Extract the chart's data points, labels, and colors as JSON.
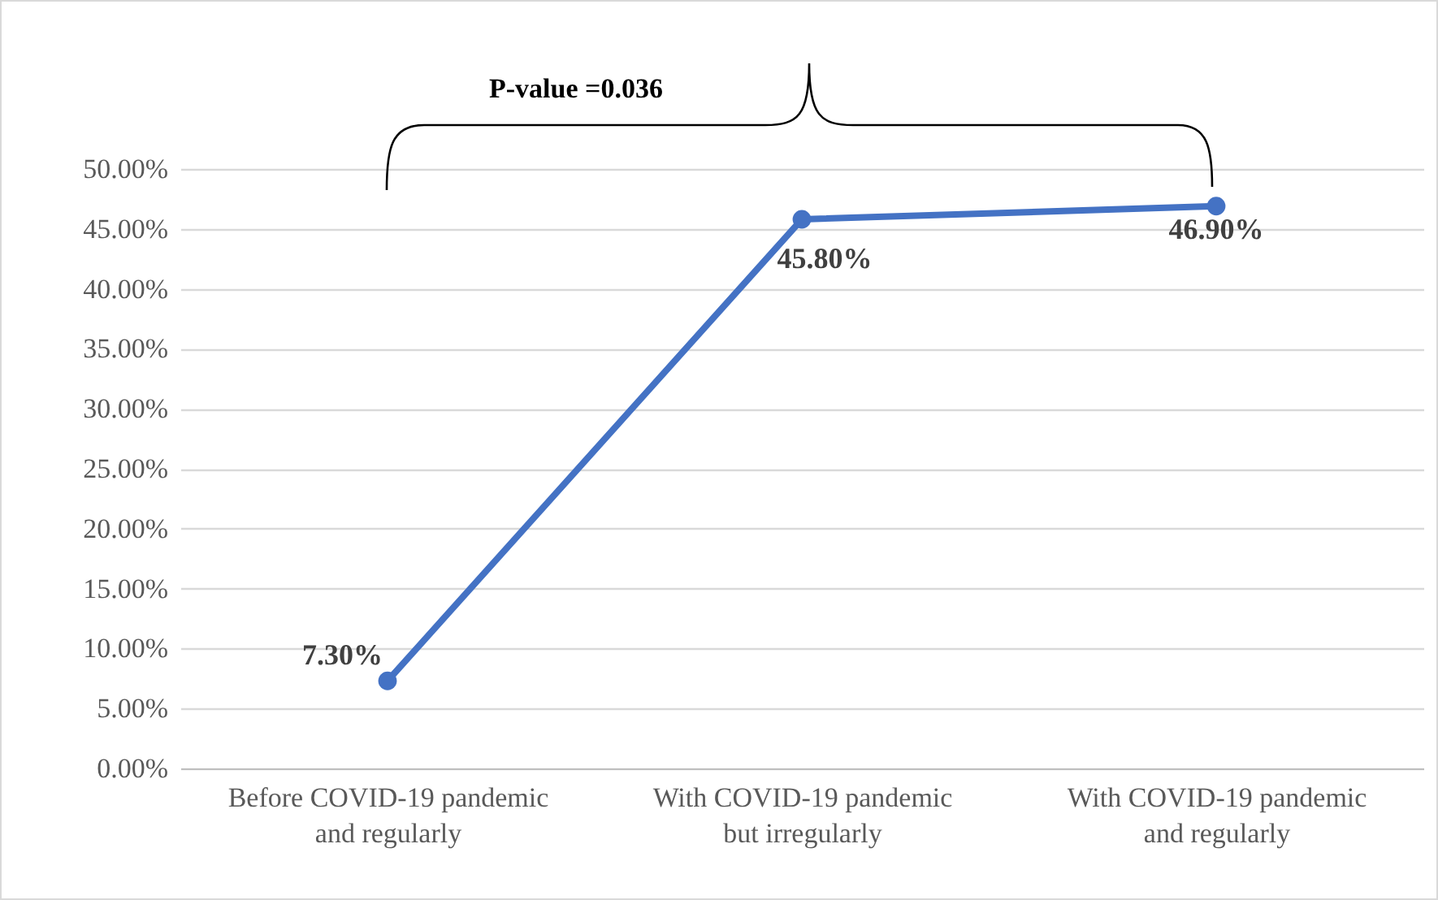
{
  "chart_data": {
    "type": "line",
    "categories": [
      "Before COVID-19 pandemic\nand regularly",
      "With COVID-19 pandemic\nbut irregularly",
      "With COVID-19 pandemic\nand regularly"
    ],
    "series": [
      {
        "color": "#4472c4",
        "values": [
          7.3,
          45.8,
          46.9
        ],
        "value_labels": [
          "7.30%",
          "45.80%",
          "46.90%"
        ]
      }
    ],
    "ylim": [
      0,
      50
    ],
    "yticks": [
      {
        "value": 0,
        "label": "0.00%"
      },
      {
        "value": 5,
        "label": "5.00%"
      },
      {
        "value": 10,
        "label": "10.00%"
      },
      {
        "value": 15,
        "label": "15.00%"
      },
      {
        "value": 20,
        "label": "20.00%"
      },
      {
        "value": 25,
        "label": "25.00%"
      },
      {
        "value": 30,
        "label": "30.00%"
      },
      {
        "value": 35,
        "label": "35.00%"
      },
      {
        "value": 40,
        "label": "40.00%"
      },
      {
        "value": 45,
        "label": "45.00%"
      },
      {
        "value": 50,
        "label": "50.00%"
      }
    ],
    "grid": "y",
    "marker": "circle",
    "line_style": "solid",
    "annotations": [
      "P-value =0.036"
    ]
  }
}
